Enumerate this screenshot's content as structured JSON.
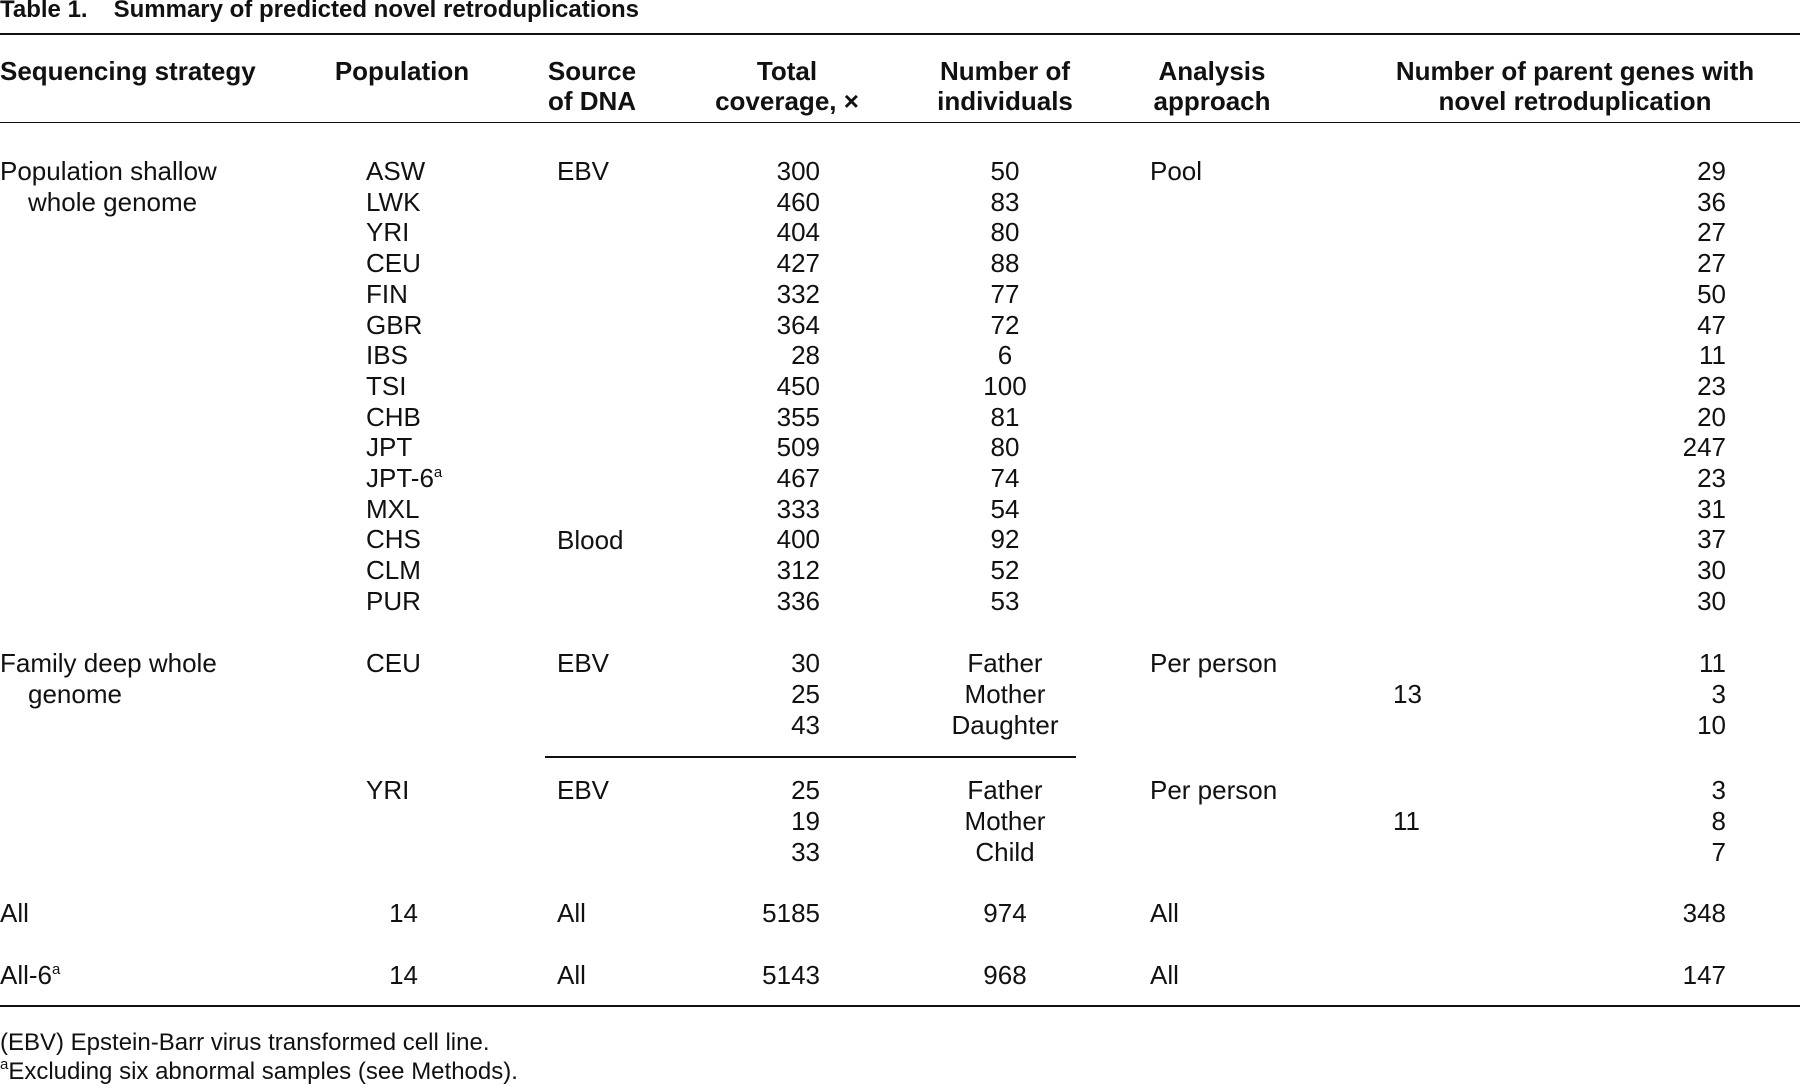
{
  "caption": {
    "label": "Table 1.",
    "title": "Summary of predicted novel retroduplications"
  },
  "headers": {
    "strategy": [
      "",
      "Sequencing strategy"
    ],
    "population": [
      "",
      "Population"
    ],
    "source": [
      "Source",
      "of DNA"
    ],
    "coverage": [
      "Total",
      "coverage, ×"
    ],
    "individuals": [
      "Number of",
      "individuals"
    ],
    "approach": [
      "Analysis",
      "approach"
    ],
    "parents": [
      "Number of parent genes with",
      "novel retroduplication"
    ]
  },
  "shallow": {
    "strategy": [
      "Population shallow",
      "whole genome"
    ],
    "source_ebv": "EBV",
    "source_blood": "Blood",
    "approach": "Pool",
    "rows": [
      {
        "pop": "ASW",
        "sup": "",
        "cov": "300",
        "ind": "50",
        "par": "29"
      },
      {
        "pop": "LWK",
        "sup": "",
        "cov": "460",
        "ind": "83",
        "par": "36"
      },
      {
        "pop": "YRI",
        "sup": "",
        "cov": "404",
        "ind": "80",
        "par": "27"
      },
      {
        "pop": "CEU",
        "sup": "",
        "cov": "427",
        "ind": "88",
        "par": "27"
      },
      {
        "pop": "FIN",
        "sup": "",
        "cov": "332",
        "ind": "77",
        "par": "50"
      },
      {
        "pop": "GBR",
        "sup": "",
        "cov": "364",
        "ind": "72",
        "par": "47"
      },
      {
        "pop": "IBS",
        "sup": "",
        "cov": "28",
        "ind": "6",
        "par": "11"
      },
      {
        "pop": "TSI",
        "sup": "",
        "cov": "450",
        "ind": "100",
        "par": "23"
      },
      {
        "pop": "CHB",
        "sup": "",
        "cov": "355",
        "ind": "81",
        "par": "20"
      },
      {
        "pop": "JPT",
        "sup": "",
        "cov": "509",
        "ind": "80",
        "par": "247"
      },
      {
        "pop": "JPT-6",
        "sup": "a",
        "cov": "467",
        "ind": "74",
        "par": "23"
      },
      {
        "pop": "MXL",
        "sup": "",
        "cov": "333",
        "ind": "54",
        "par": "31"
      },
      {
        "pop": "CHS",
        "sup": "",
        "cov": "400",
        "ind": "92",
        "par": "37"
      },
      {
        "pop": "CLM",
        "sup": "",
        "cov": "312",
        "ind": "52",
        "par": "30"
      },
      {
        "pop": "PUR",
        "sup": "",
        "cov": "336",
        "ind": "53",
        "par": "30"
      }
    ]
  },
  "family": {
    "strategy": [
      "Family deep whole",
      "genome"
    ],
    "groups": [
      {
        "pop": "CEU",
        "source": "EBV",
        "approach": "Per person",
        "total": "13",
        "members": [
          {
            "cov": "30",
            "ind": "Father",
            "par": "11"
          },
          {
            "cov": "25",
            "ind": "Mother",
            "par": "3"
          },
          {
            "cov": "43",
            "ind": "Daughter",
            "par": "10"
          }
        ]
      },
      {
        "pop": "YRI",
        "source": "EBV",
        "approach": "Per person",
        "total": "11",
        "members": [
          {
            "cov": "25",
            "ind": "Father",
            "par": "3"
          },
          {
            "cov": "19",
            "ind": "Mother",
            "par": "8"
          },
          {
            "cov": "33",
            "ind": "Child",
            "par": "7"
          }
        ]
      }
    ]
  },
  "totals": [
    {
      "strategy": "All",
      "sup": "",
      "pop": "14",
      "source": "All",
      "cov": "5185",
      "ind": "974",
      "approach": "All",
      "par": "348"
    },
    {
      "strategy": "All-6",
      "sup": "a",
      "pop": "14",
      "source": "All",
      "cov": "5143",
      "ind": "968",
      "approach": "All",
      "par": "147"
    }
  ],
  "footnotes": [
    {
      "sup": "",
      "text": "(EBV) Epstein-Barr virus transformed cell line."
    },
    {
      "sup": "a",
      "text": "Excluding six abnormal samples (see Methods)."
    }
  ]
}
